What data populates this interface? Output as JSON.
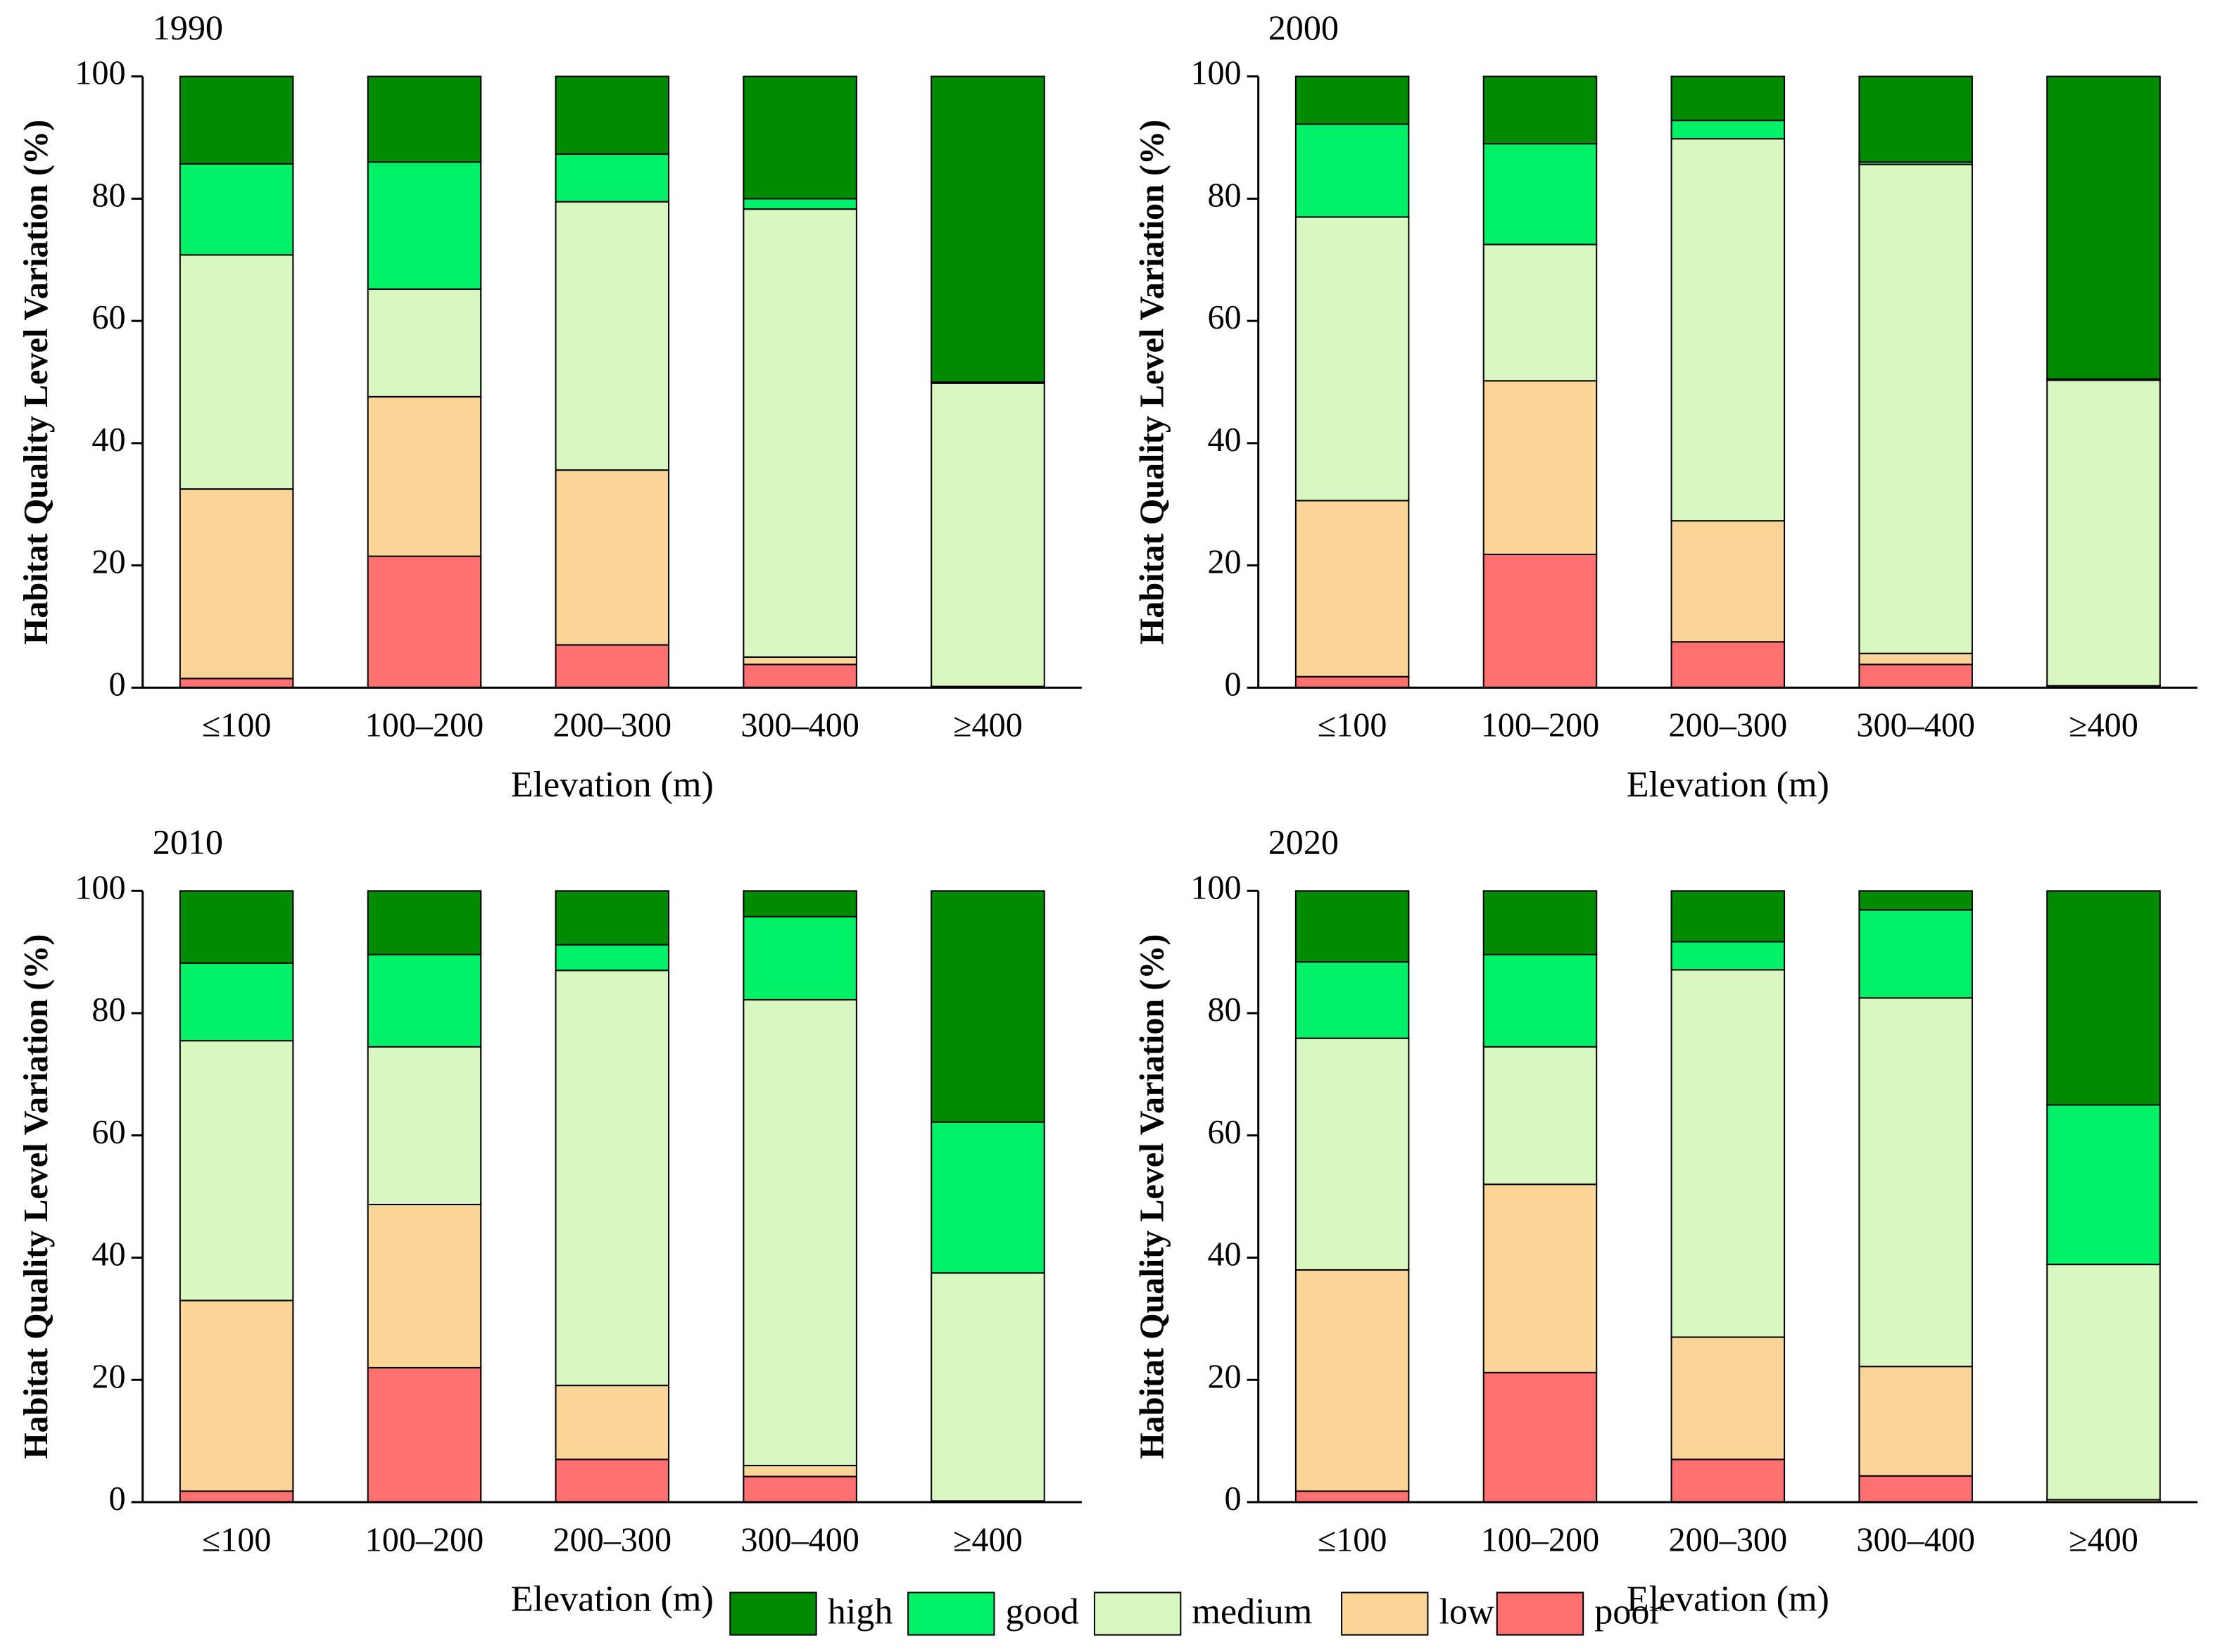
{
  "chart_data": [
    {
      "type": "bar",
      "stacked": true,
      "title": "1990",
      "ylabel": "Habitat Quality Level Variation (%)",
      "xlabel": "Elevation (m)",
      "categories": [
        "≤100",
        "100–200",
        "200–300",
        "300–400",
        "≥400"
      ],
      "series": [
        {
          "values": [
            14.3,
            14,
            12.7,
            20,
            50
          ]
        },
        {
          "values": [
            14.9,
            20.8,
            7.8,
            1.7,
            0.2
          ]
        },
        {
          "values": [
            38.3,
            17.6,
            43.9,
            73.3,
            49.6
          ]
        },
        {
          "values": [
            31,
            26.1,
            28.6,
            1.2,
            0.2
          ]
        },
        {
          "values": [
            1.5,
            21.5,
            7,
            3.8,
            0
          ]
        }
      ],
      "ylim": [
        0,
        100
      ],
      "yticks": [
        0,
        20,
        40,
        60,
        80,
        100
      ]
    },
    {
      "type": "bar",
      "stacked": true,
      "title": "2000",
      "ylabel": "Habitat Quality Level Variation (%)",
      "xlabel": "Elevation (m)",
      "categories": [
        "≤100",
        "100–200",
        "200–300",
        "300–400",
        "≥400"
      ],
      "series": [
        {
          "values": [
            7.8,
            11,
            7.2,
            14,
            49.5
          ]
        },
        {
          "values": [
            15.2,
            16.5,
            3,
            0.4,
            0.2
          ]
        },
        {
          "values": [
            46.4,
            22.3,
            62.5,
            80,
            50
          ]
        },
        {
          "values": [
            28.8,
            28.4,
            19.8,
            1.8,
            0.3
          ]
        },
        {
          "values": [
            1.8,
            21.8,
            7.5,
            3.8,
            0
          ]
        }
      ],
      "ylim": [
        0,
        100
      ],
      "yticks": [
        0,
        20,
        40,
        60,
        80,
        100
      ]
    },
    {
      "type": "bar",
      "stacked": true,
      "title": "2010",
      "ylabel": "Habitat Quality Level Variation (%)",
      "xlabel": "Elevation (m)",
      "categories": [
        "≤100",
        "100–200",
        "200–300",
        "300–400",
        "≥400"
      ],
      "series": [
        {
          "values": [
            11.8,
            10.4,
            8.8,
            4.2,
            37.8
          ]
        },
        {
          "values": [
            12.7,
            15.1,
            4.2,
            13.6,
            24.7
          ]
        },
        {
          "values": [
            42.5,
            25.8,
            67.9,
            76.2,
            37.3
          ]
        },
        {
          "values": [
            31.2,
            26.7,
            12.1,
            1.8,
            0.2
          ]
        },
        {
          "values": [
            1.8,
            22,
            7,
            4.2,
            0
          ]
        }
      ],
      "ylim": [
        0,
        100
      ],
      "yticks": [
        0,
        20,
        40,
        60,
        80,
        100
      ]
    },
    {
      "type": "bar",
      "stacked": true,
      "title": "2020",
      "ylabel": "Habitat Quality Level Variation (%)",
      "xlabel": "Elevation (m)",
      "categories": [
        "≤100",
        "100–200",
        "200–300",
        "300–400",
        "≥400"
      ],
      "series": [
        {
          "values": [
            11.6,
            10.4,
            8.3,
            3.1,
            35
          ]
        },
        {
          "values": [
            12.5,
            15.1,
            4.6,
            14.4,
            26.1
          ]
        },
        {
          "values": [
            37.9,
            22.5,
            60.1,
            60.3,
            38.5
          ]
        },
        {
          "values": [
            36.2,
            30.8,
            20,
            17.9,
            0.4
          ]
        },
        {
          "values": [
            1.8,
            21.2,
            7,
            4.3,
            0
          ]
        }
      ],
      "ylim": [
        0,
        100
      ],
      "yticks": [
        0,
        20,
        40,
        60,
        80,
        100
      ]
    }
  ],
  "legend": {
    "items": [
      {
        "name": "high",
        "color": "#008c00"
      },
      {
        "name": "good",
        "color": "#00f068"
      },
      {
        "name": "medium",
        "color": "#d9f7c0"
      },
      {
        "name": "low",
        "color": "#fbd597"
      },
      {
        "name": "poor",
        "color": "#ff7070"
      }
    ]
  }
}
